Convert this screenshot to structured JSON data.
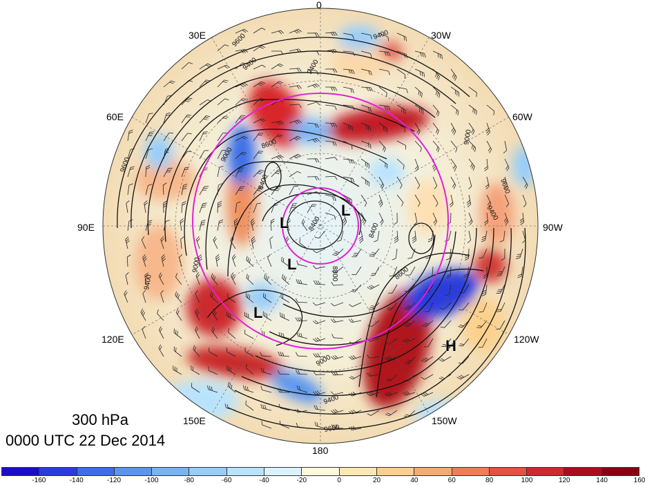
{
  "title": {
    "level": "300 hPa",
    "time": "0000 UTC 22 Dec 2014"
  },
  "longitude_labels": [
    "0",
    "30W",
    "60W",
    "90W",
    "120W",
    "150W",
    "180",
    "150E",
    "120E",
    "90E",
    "60E",
    "30E"
  ],
  "pressure_systems": [
    {
      "type": "L",
      "label": "L"
    },
    {
      "type": "L",
      "label": "L"
    },
    {
      "type": "L",
      "label": "L"
    },
    {
      "type": "L",
      "label": "L"
    },
    {
      "type": "H",
      "label": "H"
    }
  ],
  "contour_labels": [
    "9600",
    "9400",
    "9400",
    "9000",
    "8600",
    "8400",
    "8400",
    "8800",
    "9000",
    "9400",
    "9600",
    "9000",
    "9400",
    "9600",
    "8400",
    "9400",
    "9000",
    "8600",
    "9400",
    "9600"
  ],
  "colorbar": {
    "colors": [
      "#1a0ec8",
      "#2a3cdc",
      "#3c6ee6",
      "#5a96f0",
      "#78b4f5",
      "#96cdfa",
      "#b9e3fc",
      "#dcf3fe",
      "#fff9dc",
      "#fde8b4",
      "#fbd08c",
      "#f7aa6e",
      "#ef7e55",
      "#e25340",
      "#cc2a2e",
      "#a80f1e",
      "#8a0010"
    ],
    "tick_labels": [
      "-160",
      "-140",
      "-120",
      "-100",
      "-80",
      "-60",
      "-40",
      "-20",
      "0",
      "20",
      "40",
      "60",
      "80",
      "100",
      "120",
      "140",
      "160"
    ]
  },
  "colors": {
    "circle": "#e020d8",
    "contour": "#111111",
    "background": "#ffffff"
  }
}
